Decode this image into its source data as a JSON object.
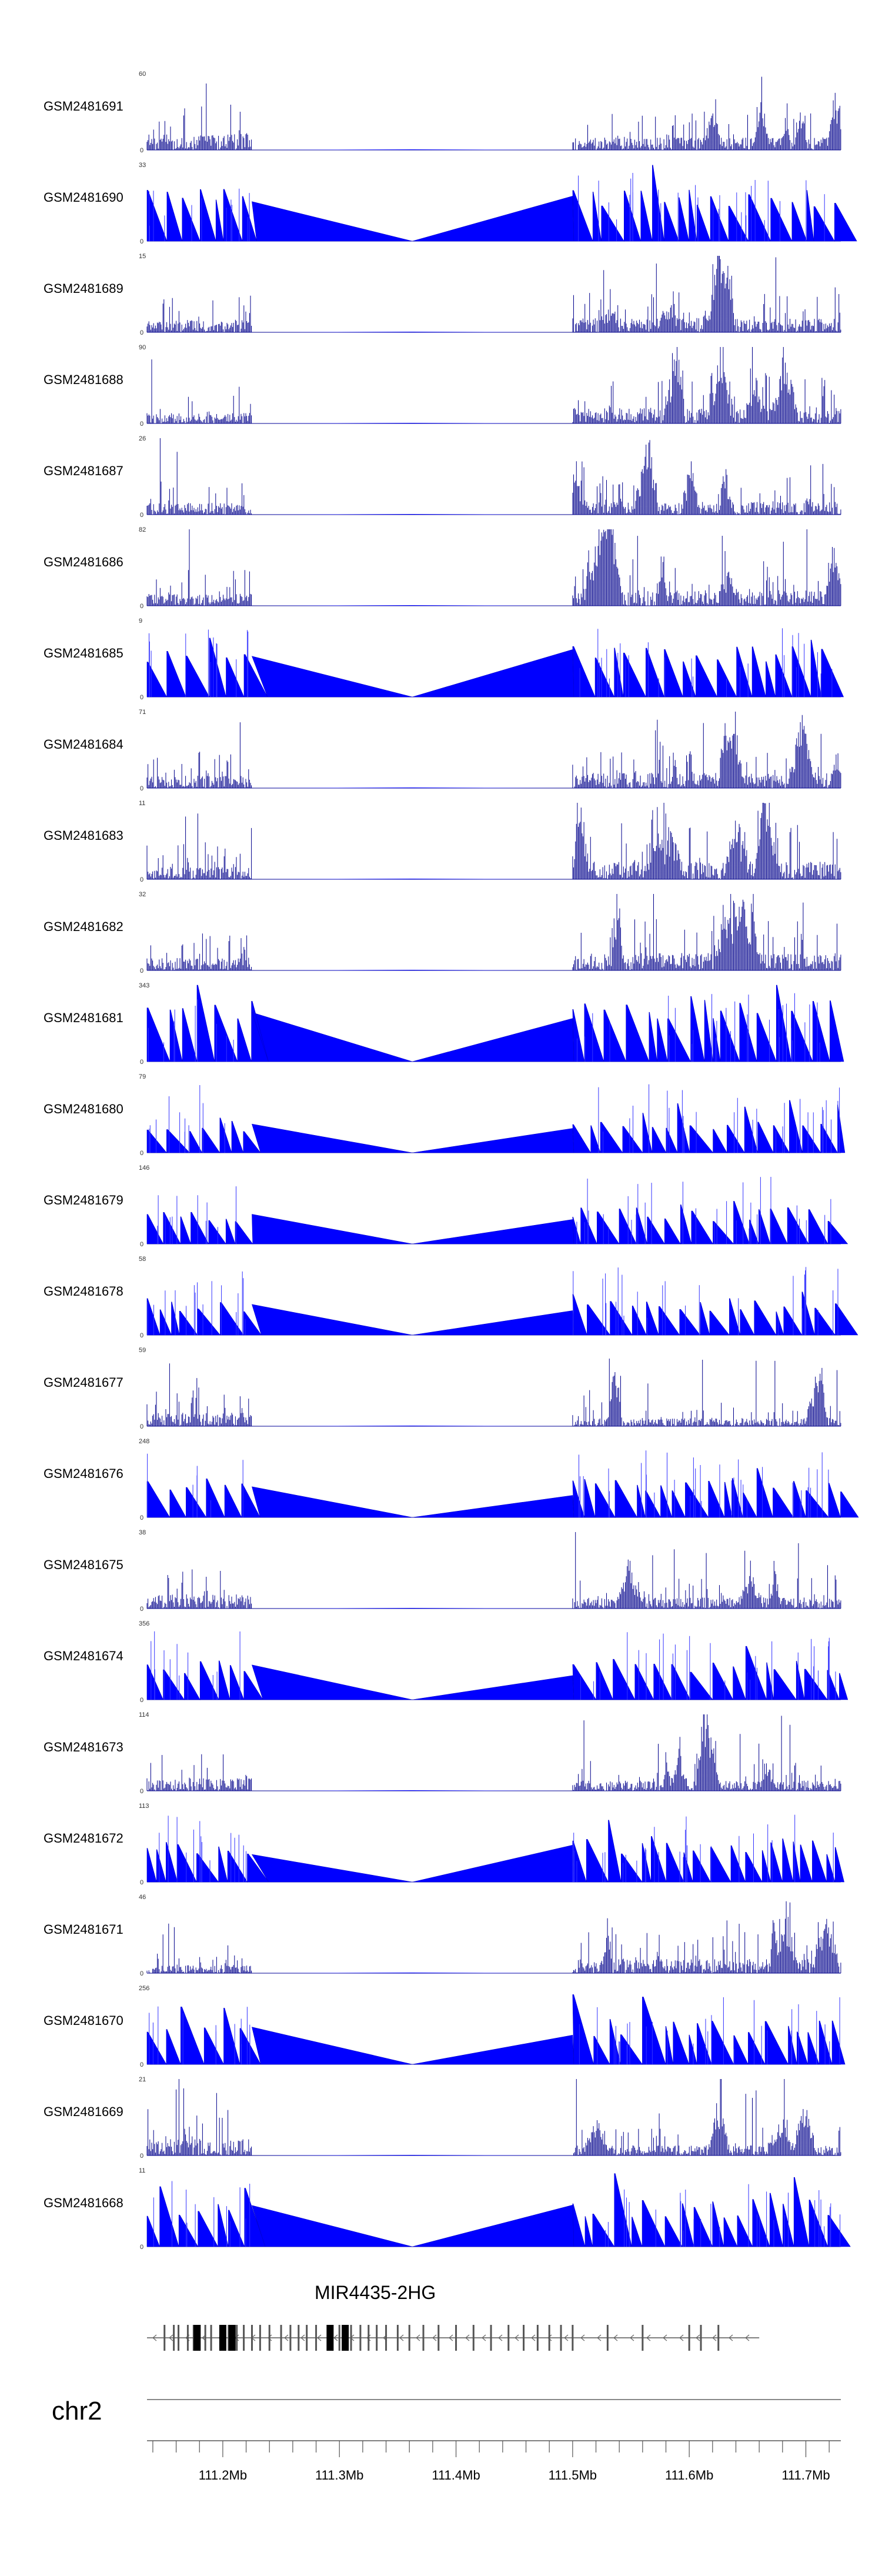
{
  "chart_data": {
    "type": "area",
    "title": "",
    "chromosome": "chr2",
    "gene": "MIR4435-2HG",
    "x_range_mb": [
      111.135,
      111.73
    ],
    "x_ticks": [
      "111.2Mb",
      "111.3Mb",
      "111.4Mb",
      "111.5Mb",
      "111.6Mb",
      "111.7Mb"
    ],
    "x_tick_values": [
      111.2,
      111.3,
      111.4,
      111.5,
      111.6,
      111.7
    ],
    "fill_color": "#0000ff",
    "line_color": "#00008b",
    "tracks": [
      {
        "name": "GSM2481691",
        "ymax": "60",
        "ymin": "0",
        "style": "dense"
      },
      {
        "name": "GSM2481690",
        "ymax": "33",
        "ymin": "0",
        "style": "sparse"
      },
      {
        "name": "GSM2481689",
        "ymax": "15",
        "ymin": "0",
        "style": "dense"
      },
      {
        "name": "GSM2481688",
        "ymax": "90",
        "ymin": "0",
        "style": "dense"
      },
      {
        "name": "GSM2481687",
        "ymax": "26",
        "ymin": "0",
        "style": "dense"
      },
      {
        "name": "GSM2481686",
        "ymax": "82",
        "ymin": "0",
        "style": "dense"
      },
      {
        "name": "GSM2481685",
        "ymax": "9",
        "ymin": "0",
        "style": "sparse"
      },
      {
        "name": "GSM2481684",
        "ymax": "71",
        "ymin": "0",
        "style": "dense"
      },
      {
        "name": "GSM2481683",
        "ymax": "11",
        "ymin": "0",
        "style": "dense"
      },
      {
        "name": "GSM2481682",
        "ymax": "32",
        "ymin": "0",
        "style": "dense"
      },
      {
        "name": "GSM2481681",
        "ymax": "343",
        "ymin": "0",
        "style": "sparse"
      },
      {
        "name": "GSM2481680",
        "ymax": "79",
        "ymin": "0",
        "style": "sparse"
      },
      {
        "name": "GSM2481679",
        "ymax": "146",
        "ymin": "0",
        "style": "sparse"
      },
      {
        "name": "GSM2481678",
        "ymax": "58",
        "ymin": "0",
        "style": "sparse"
      },
      {
        "name": "GSM2481677",
        "ymax": "59",
        "ymin": "0",
        "style": "dense"
      },
      {
        "name": "GSM2481676",
        "ymax": "248",
        "ymin": "0",
        "style": "sparse"
      },
      {
        "name": "GSM2481675",
        "ymax": "38",
        "ymin": "0",
        "style": "dense"
      },
      {
        "name": "GSM2481674",
        "ymax": "356",
        "ymin": "0",
        "style": "sparse"
      },
      {
        "name": "GSM2481673",
        "ymax": "114",
        "ymin": "0",
        "style": "dense"
      },
      {
        "name": "GSM2481672",
        "ymax": "113",
        "ymin": "0",
        "style": "sparse"
      },
      {
        "name": "GSM2481671",
        "ymax": "46",
        "ymin": "0",
        "style": "dense"
      },
      {
        "name": "GSM2481670",
        "ymax": "256",
        "ymin": "0",
        "style": "sparse"
      },
      {
        "name": "GSM2481669",
        "ymax": "21",
        "ymin": "0",
        "style": "dense"
      },
      {
        "name": "GSM2481668",
        "ymax": "11",
        "ymin": "0",
        "style": "sparse"
      }
    ],
    "data_regions_mb": [
      [
        111.135,
        111.225
      ],
      [
        111.5,
        111.73
      ]
    ],
    "gene_exons_mb": [
      111.15,
      111.158,
      111.162,
      111.17,
      111.175,
      111.185,
      111.19,
      111.205,
      111.212,
      111.218,
      111.225,
      111.232,
      111.24,
      111.25,
      111.258,
      111.265,
      111.272,
      111.28,
      111.29,
      111.3,
      111.31,
      111.318,
      111.325,
      111.332,
      111.34,
      111.35,
      111.36,
      111.372,
      111.385,
      111.4,
      111.415,
      111.43,
      111.445,
      111.458,
      111.47,
      111.48,
      111.49,
      111.5,
      111.53,
      111.56,
      111.6,
      111.61,
      111.625
    ],
    "gene_thick_exons_mb": [
      111.178,
      111.2,
      111.208,
      111.292,
      111.305
    ]
  }
}
